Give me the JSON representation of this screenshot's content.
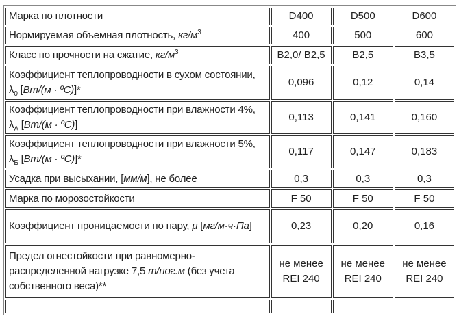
{
  "table": {
    "rows": [
      {
        "label": [
          {
            "t": "Марка по плотности"
          }
        ],
        "values": [
          "D400",
          "D500",
          "D600"
        ]
      },
      {
        "label": [
          {
            "t": "Нормируемая объемная плотность, "
          },
          {
            "t": "кг/м",
            "s": "i"
          },
          {
            "t": "3",
            "s": "sup"
          }
        ],
        "values": [
          "400",
          "500",
          "600"
        ]
      },
      {
        "label": [
          {
            "t": "Класс по прочности на сжатие, "
          },
          {
            "t": "кг/м",
            "s": "i"
          },
          {
            "t": "3",
            "s": "sup"
          }
        ],
        "values": [
          "B2,0/ B2,5",
          "B2,5",
          "B3,5"
        ]
      },
      {
        "label": [
          {
            "t": "Коэффициент теплопроводности в сухом состоянии, λ"
          },
          {
            "t": "0",
            "s": "sub"
          },
          {
            "t": " ["
          },
          {
            "t": "Вт/(м · ºС)",
            "s": "i"
          },
          {
            "t": "]*"
          }
        ],
        "values": [
          "0,096",
          "0,12",
          "0,14"
        ]
      },
      {
        "label": [
          {
            "t": "Коэффициент теплопроводности при влажности 4%, λ"
          },
          {
            "t": "А",
            "s": "sub"
          },
          {
            "t": " ["
          },
          {
            "t": "Вт/(м · ºС)",
            "s": "i"
          },
          {
            "t": "]"
          }
        ],
        "values": [
          "0,113",
          "0,141",
          "0,160"
        ]
      },
      {
        "label": [
          {
            "t": "Коэффициент теплопроводности при влажности 5%, λ"
          },
          {
            "t": "Б",
            "s": "sub"
          },
          {
            "t": " ["
          },
          {
            "t": "Вт/(м · ºС)",
            "s": "i"
          },
          {
            "t": "]*"
          }
        ],
        "values": [
          "0,117",
          "0,147",
          "0,183"
        ]
      },
      {
        "label": [
          {
            "t": "Усадка при высыхании, ["
          },
          {
            "t": "мм/м",
            "s": "i"
          },
          {
            "t": "], не более"
          }
        ],
        "values": [
          "0,3",
          "0,3",
          "0,3"
        ]
      },
      {
        "label": [
          {
            "t": "Марка по морозостойкости"
          }
        ],
        "values": [
          "F 50",
          "F 50",
          "F 50"
        ]
      },
      {
        "label": [
          {
            "t": "Коэффициент проницаемости по пару, "
          },
          {
            "t": "μ",
            "s": "i"
          },
          {
            "t": " ["
          },
          {
            "t": "мг/м·ч·Па",
            "s": "i"
          },
          {
            "t": "]"
          }
        ],
        "values": [
          "0,23",
          "0,20",
          "0,16"
        ]
      },
      {
        "label": [
          {
            "t": "Предел огнестойкости при равномерно-распределенной нагрузке 7,5 "
          },
          {
            "t": "т/пог.м",
            "s": "i"
          },
          {
            "t": " (без учета собственного веса)**"
          }
        ],
        "values": [
          "не менее REI 240",
          "не менее REI 240",
          "не менее REI 240"
        ]
      },
      {
        "label": [
          {
            "t": ""
          }
        ],
        "values": [
          "",
          "",
          ""
        ]
      }
    ]
  }
}
